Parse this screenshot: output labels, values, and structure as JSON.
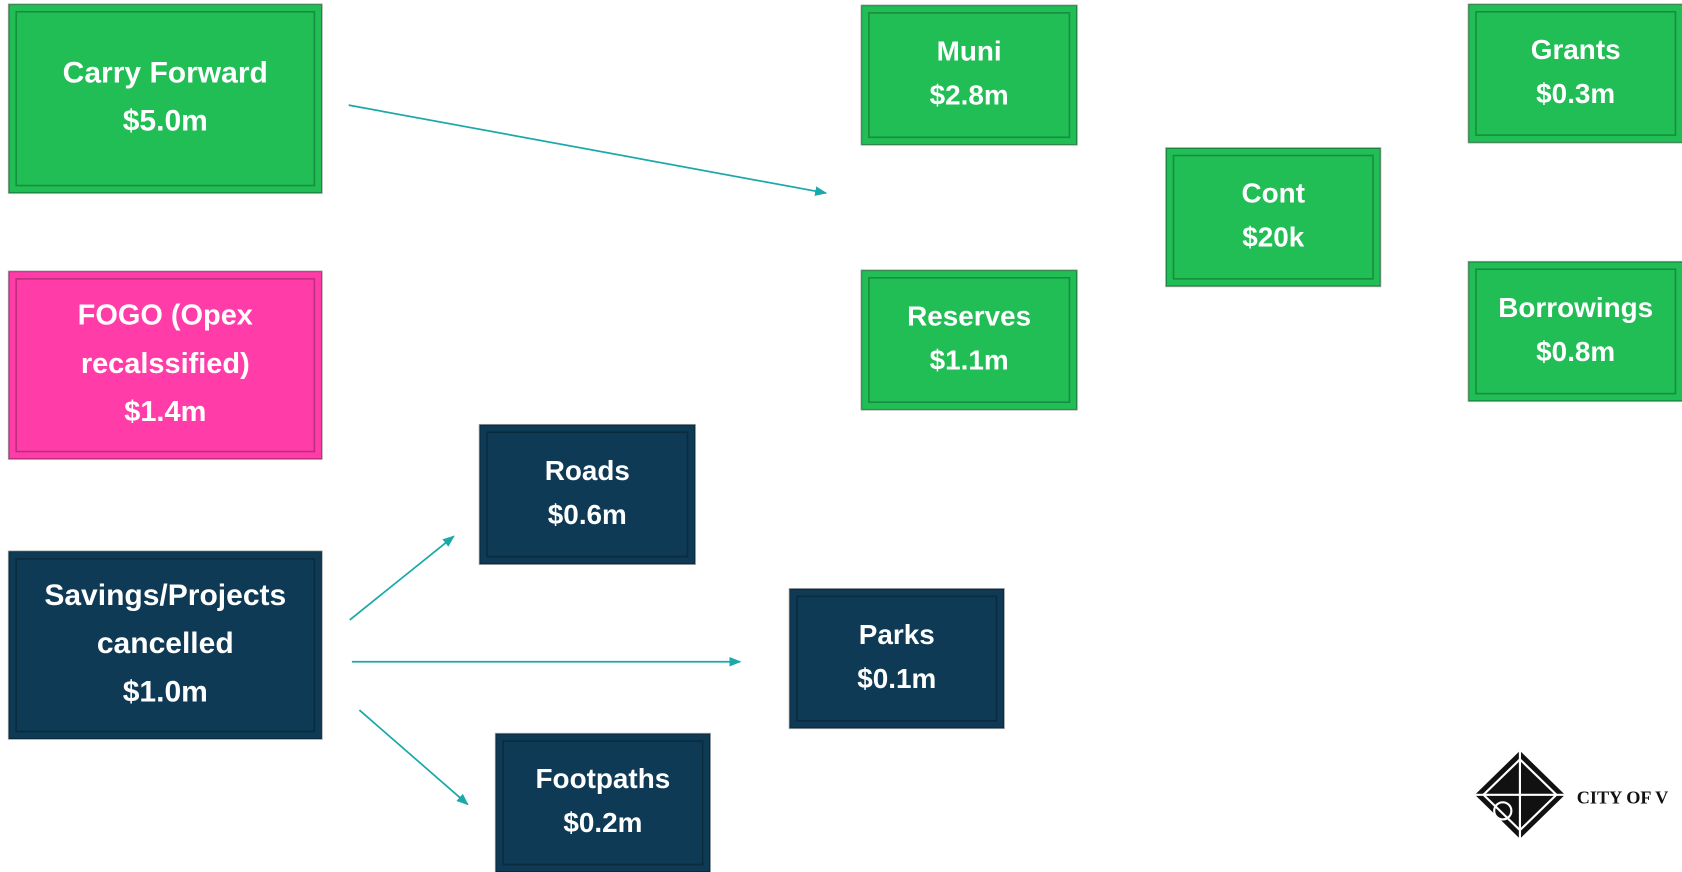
{
  "nodes": [
    {
      "lines": [
        "Carry Forward",
        "$5.0m"
      ]
    },
    {
      "lines": [
        "FOGO (Opex",
        "recalssified)",
        "$1.4m"
      ]
    },
    {
      "lines": [
        "Savings/Projects",
        "cancelled",
        "$1.0m"
      ]
    },
    {
      "lines": [
        "Roads",
        "$0.6m"
      ]
    },
    {
      "lines": [
        "Parks",
        "$0.1m"
      ]
    },
    {
      "lines": [
        "Footpaths",
        "$0.2m"
      ]
    },
    {
      "lines": [
        "Muni",
        "$2.8m"
      ]
    },
    {
      "lines": [
        "Reserves",
        "$1.1m"
      ]
    },
    {
      "lines": [
        "Cont",
        "$20k"
      ]
    },
    {
      "lines": [
        "Grants",
        "$0.3m"
      ]
    },
    {
      "lines": [
        "Borrowings",
        "$0.8m"
      ]
    }
  ],
  "logo": {
    "text": "CITY OF V"
  }
}
